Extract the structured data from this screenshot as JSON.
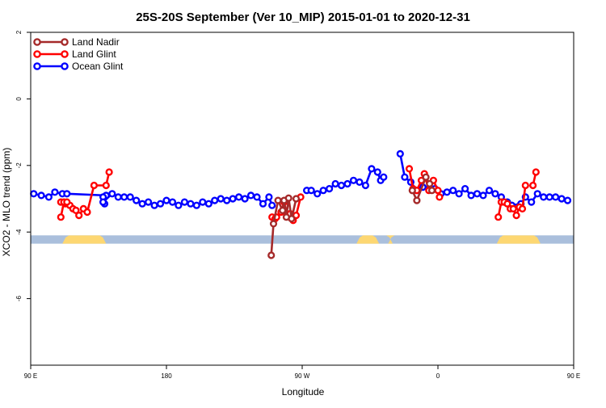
{
  "chart_data": {
    "type": "line",
    "title": "25S-20S September (Ver 10_MIP)   2015-01-01 to 2020-12-31",
    "xlabel": "Longitude",
    "ylabel": "XCO2 - MLO trend (ppm)",
    "xlim": [
      0,
      360
    ],
    "ylim": [
      -8,
      2
    ],
    "x_ticks": [
      {
        "value": 0,
        "label": "90 E"
      },
      {
        "value": 90,
        "label": "180"
      },
      {
        "value": 180,
        "label": "90 W"
      },
      {
        "value": 270,
        "label": "0"
      },
      {
        "value": 360,
        "label": "90 E"
      },
      {
        "value": 450,
        "label": "180"
      }
    ],
    "y_ticks": [
      {
        "value": 2,
        "label": "2"
      },
      {
        "value": 0,
        "label": "0"
      },
      {
        "value": -2,
        "label": "-2"
      },
      {
        "value": -4,
        "label": "-4"
      },
      {
        "value": -6,
        "label": "-6"
      }
    ],
    "legend_position": "top-left",
    "land_band": {
      "y_range": [
        -4.35,
        -4.1
      ],
      "ocean_color": "#aabfdc",
      "land_color": "#fdd772",
      "land_x": [
        [
          21,
          50
        ],
        [
          216,
          231
        ],
        [
          237,
          240
        ],
        [
          309,
          338
        ]
      ]
    },
    "series": [
      {
        "name": "Land Nadir",
        "color": "#a52a2a",
        "segments": [
          [
            [
              159.5,
              -4.7
            ],
            [
              161,
              -3.75
            ],
            [
              164,
              -3.05
            ],
            [
              167,
              -3.35
            ],
            [
              168,
              -3.05
            ],
            [
              169.5,
              -3.55
            ],
            [
              171,
              -2.98
            ],
            [
              173,
              -3.6
            ],
            [
              176,
              -3.0
            ]
          ],
          [
            [
              253,
              -2.75
            ],
            [
              256,
              -3.05
            ],
            [
              262,
              -2.35
            ],
            [
              264.5,
              -2.55
            ],
            [
              266,
              -2.75
            ]
          ]
        ]
      },
      {
        "name": "Land Glint",
        "color": "#ff0000",
        "segments": [
          [
            [
              20,
              -3.1
            ],
            [
              23,
              -3.15
            ],
            [
              26,
              -3.2
            ],
            [
              28,
              -3.3
            ],
            [
              30,
              -3.35
            ],
            [
              32,
              -3.5
            ],
            [
              35,
              -3.3
            ],
            [
              37.5,
              -3.4
            ],
            [
              42,
              -2.6
            ],
            [
              50,
              -2.6
            ],
            [
              52,
              -2.2
            ]
          ],
          [
            [
              20,
              -3.55
            ],
            [
              22,
              -3.1
            ],
            [
              24,
              -3.1
            ]
          ],
          [
            [
              160,
              -3.55
            ],
            [
              162,
              -3.6
            ],
            [
              163,
              -3.55
            ],
            [
              166,
              -3.4
            ],
            [
              168,
              -3.1
            ],
            [
              170,
              -3.5
            ],
            [
              172,
              -3.45
            ],
            [
              174,
              -3.65
            ],
            [
              176,
              -3.5
            ],
            [
              179,
              -2.95
            ]
          ],
          [
            [
              251,
              -2.1
            ],
            [
              253.5,
              -2.7
            ],
            [
              256,
              -2.75
            ],
            [
              259,
              -2.45
            ],
            [
              261,
              -2.25
            ],
            [
              264,
              -2.75
            ],
            [
              267,
              -2.45
            ],
            [
              270,
              -2.75
            ],
            [
              271,
              -2.95
            ]
          ],
          [
            [
              310,
              -3.55
            ],
            [
              312,
              -3.1
            ],
            [
              314,
              -3.1
            ],
            [
              316,
              -3.15
            ],
            [
              318,
              -3.3
            ],
            [
              320,
              -3.3
            ],
            [
              322,
              -3.5
            ],
            [
              324,
              -3.25
            ],
            [
              326,
              -3.3
            ],
            [
              328,
              -2.6
            ]
          ],
          [
            [
              333,
              -2.6
            ],
            [
              335,
              -2.2
            ]
          ]
        ]
      },
      {
        "name": "Ocean Glint",
        "color": "#0000ff",
        "segments": [
          [
            [
              2,
              -2.85
            ],
            [
              7,
              -2.9
            ],
            [
              12,
              -2.95
            ],
            [
              16,
              -2.8
            ],
            [
              21,
              -2.85
            ],
            [
              24,
              -2.85
            ],
            [
              50,
              -2.9
            ]
          ],
          [
            [
              48,
              -2.95
            ],
            [
              49,
              -3.15
            ]
          ],
          [
            [
              48,
              -3.1
            ],
            [
              54,
              -2.85
            ],
            [
              58,
              -2.95
            ],
            [
              62,
              -2.95
            ],
            [
              66,
              -2.95
            ],
            [
              70,
              -3.05
            ],
            [
              74,
              -3.15
            ],
            [
              78,
              -3.1
            ],
            [
              82,
              -3.2
            ],
            [
              86,
              -3.15
            ],
            [
              90,
              -3.05
            ],
            [
              94,
              -3.1
            ],
            [
              98,
              -3.2
            ],
            [
              102,
              -3.1
            ],
            [
              106,
              -3.15
            ],
            [
              110,
              -3.2
            ],
            [
              114,
              -3.1
            ],
            [
              118,
              -3.15
            ],
            [
              122,
              -3.05
            ],
            [
              126,
              -3.0
            ],
            [
              130,
              -3.05
            ],
            [
              134,
              -3.0
            ],
            [
              138,
              -2.95
            ],
            [
              142,
              -3.0
            ],
            [
              146,
              -2.9
            ],
            [
              150,
              -2.95
            ],
            [
              154,
              -3.15
            ],
            [
              158,
              -2.95
            ],
            [
              160,
              -3.2
            ]
          ],
          [
            [
              183,
              -2.75
            ],
            [
              186,
              -2.75
            ],
            [
              190,
              -2.85
            ],
            [
              194,
              -2.75
            ],
            [
              198,
              -2.7
            ],
            [
              202,
              -2.55
            ],
            [
              206,
              -2.6
            ],
            [
              210,
              -2.55
            ],
            [
              214,
              -2.45
            ],
            [
              218,
              -2.5
            ],
            [
              222,
              -2.6
            ],
            [
              226,
              -2.1
            ],
            [
              230,
              -2.2
            ],
            [
              232,
              -2.45
            ],
            [
              234,
              -2.35
            ]
          ],
          [
            [
              245,
              -1.65
            ],
            [
              248,
              -2.35
            ],
            [
              252,
              -2.5
            ],
            [
              256,
              -2.75
            ],
            [
              260,
              -2.65
            ],
            [
              264,
              -2.7
            ],
            [
              268,
              -2.7
            ],
            [
              272,
              -2.85
            ],
            [
              276,
              -2.8
            ],
            [
              280,
              -2.75
            ],
            [
              284,
              -2.85
            ],
            [
              288,
              -2.7
            ],
            [
              292,
              -2.9
            ],
            [
              296,
              -2.85
            ],
            [
              300,
              -2.9
            ],
            [
              304,
              -2.75
            ],
            [
              308,
              -2.85
            ],
            [
              312,
              -2.95
            ],
            [
              316,
              -3.1
            ],
            [
              319,
              -3.2
            ],
            [
              325,
              -3.15
            ],
            [
              328,
              -2.95
            ],
            [
              332,
              -3.1
            ],
            [
              336,
              -2.85
            ],
            [
              340,
              -2.95
            ],
            [
              344,
              -2.95
            ],
            [
              348,
              -2.95
            ],
            [
              352,
              -3.0
            ],
            [
              356,
              -3.05
            ]
          ]
        ]
      }
    ]
  }
}
